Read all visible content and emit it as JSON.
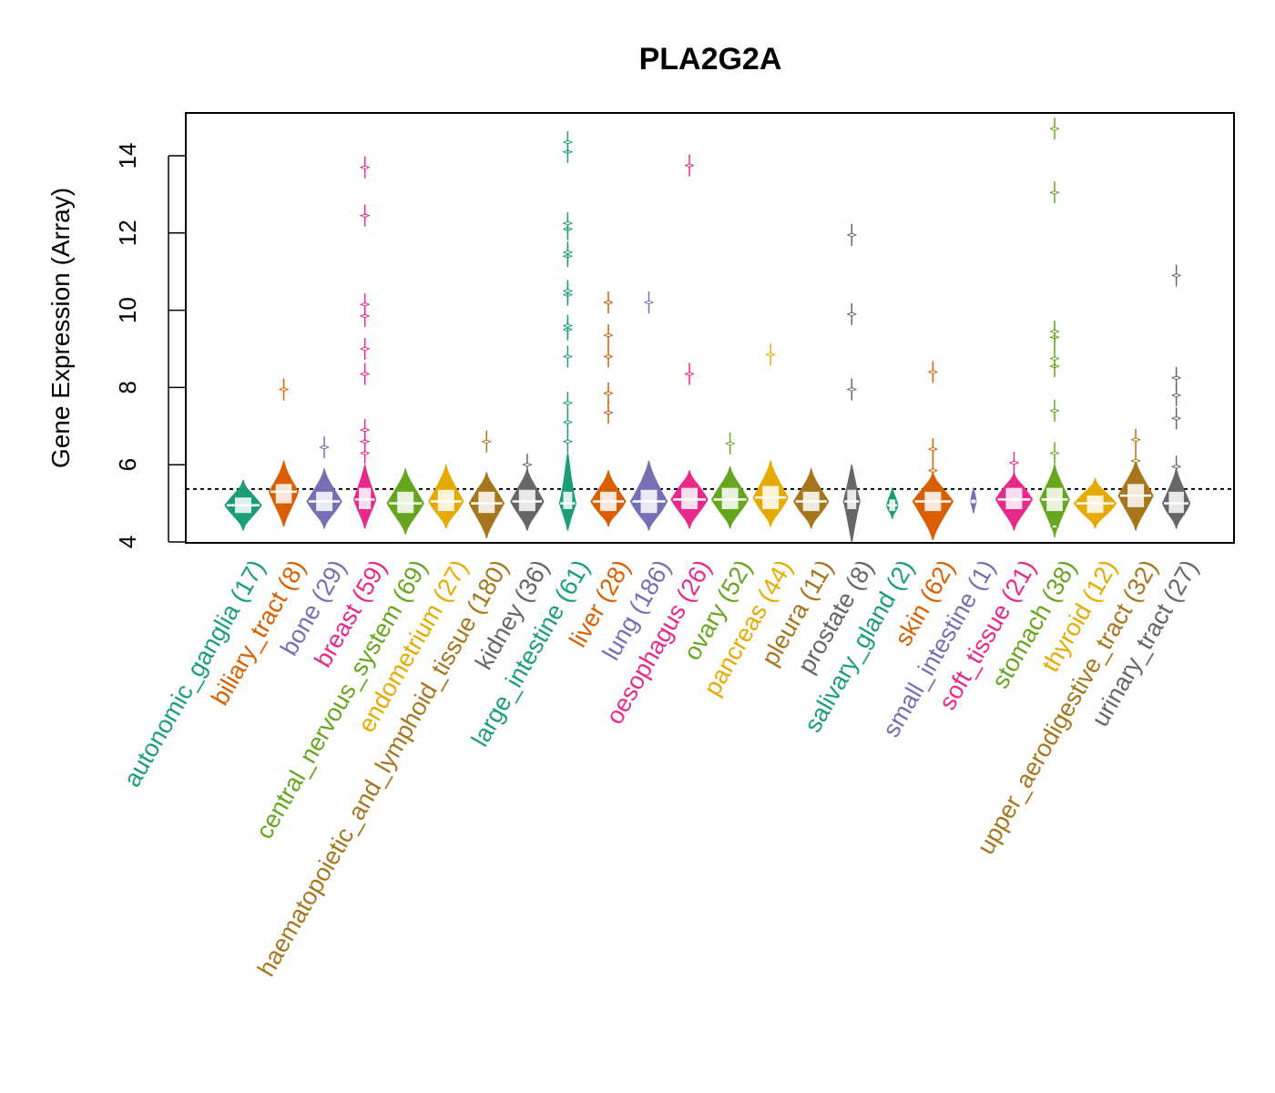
{
  "chart_data": {
    "type": "violin",
    "title": "PLA2G2A",
    "xlabel": "",
    "ylabel": "Gene Expression (Array)",
    "ylim": [
      4,
      15.1
    ],
    "yticks": [
      4,
      6,
      8,
      10,
      12,
      14
    ],
    "reference_line": {
      "value": 5.37,
      "style": "dotted",
      "color": "#000000"
    },
    "grid": false,
    "legend": "none",
    "categories": [
      {
        "name": "autonomic_ganglia",
        "n": 17,
        "label": "autonomic_ganglia (17)",
        "color": "#1B9E77",
        "median": 4.95,
        "q1": 4.75,
        "q3": 5.15,
        "min": 4.3,
        "max": 5.6,
        "width": 1.0,
        "outliers": []
      },
      {
        "name": "biliary_tract",
        "n": 8,
        "label": "biliary_tract (8)",
        "color": "#D95F02",
        "median": 5.3,
        "q1": 5.0,
        "q3": 5.5,
        "min": 4.4,
        "max": 6.1,
        "width": 0.8,
        "outliers": [
          7.95
        ]
      },
      {
        "name": "bone",
        "n": 29,
        "label": "bone (29)",
        "color": "#7570B3",
        "median": 5.05,
        "q1": 4.8,
        "q3": 5.3,
        "min": 4.35,
        "max": 5.9,
        "width": 0.95,
        "outliers": [
          6.45
        ]
      },
      {
        "name": "breast",
        "n": 59,
        "label": "breast (59)",
        "color": "#E7298A",
        "median": 5.1,
        "q1": 4.85,
        "q3": 5.4,
        "min": 4.35,
        "max": 6.0,
        "width": 0.6,
        "outliers": [
          6.3,
          6.6,
          6.9,
          8.35,
          9.0,
          9.85,
          10.15,
          12.45,
          13.7
        ]
      },
      {
        "name": "central_nervous_system",
        "n": 69,
        "label": "central_nervous_system (69)",
        "color": "#66A61E",
        "median": 5.0,
        "q1": 4.75,
        "q3": 5.3,
        "min": 4.2,
        "max": 5.9,
        "width": 1.0,
        "outliers": []
      },
      {
        "name": "endometrium",
        "n": 27,
        "label": "endometrium (27)",
        "color": "#E6AB02",
        "median": 5.05,
        "q1": 4.8,
        "q3": 5.35,
        "min": 4.35,
        "max": 6.0,
        "width": 0.95,
        "outliers": []
      },
      {
        "name": "haematopoietic_and_lymphoid_tissue",
        "n": 180,
        "label": "haematopoietic_and_lymphoid_tissue (180)",
        "color": "#A6761D",
        "median": 5.0,
        "q1": 4.75,
        "q3": 5.3,
        "min": 4.1,
        "max": 5.8,
        "width": 0.95,
        "outliers": [
          6.6
        ]
      },
      {
        "name": "kidney",
        "n": 36,
        "label": "kidney (36)",
        "color": "#666666",
        "median": 5.05,
        "q1": 4.8,
        "q3": 5.35,
        "min": 4.3,
        "max": 5.9,
        "width": 0.9,
        "outliers": [
          6.0
        ]
      },
      {
        "name": "large_intestine",
        "n": 61,
        "label": "large_intestine (61)",
        "color": "#1B9E77",
        "median": 5.0,
        "q1": 4.85,
        "q3": 5.3,
        "min": 4.3,
        "max": 6.3,
        "width": 0.45,
        "outliers": [
          6.6,
          7.1,
          7.6,
          8.8,
          9.5,
          9.6,
          10.4,
          10.5,
          11.4,
          11.5,
          12.1,
          12.25,
          14.1,
          14.35
        ]
      },
      {
        "name": "liver",
        "n": 28,
        "label": "liver (28)",
        "color": "#D95F02",
        "median": 5.05,
        "q1": 4.8,
        "q3": 5.3,
        "min": 4.4,
        "max": 5.85,
        "width": 0.95,
        "outliers": [
          7.35,
          7.85,
          8.8,
          9.35,
          10.2
        ]
      },
      {
        "name": "lung",
        "n": 186,
        "label": "lung (186)",
        "color": "#7570B3",
        "median": 5.05,
        "q1": 4.75,
        "q3": 5.35,
        "min": 4.3,
        "max": 6.1,
        "width": 1.0,
        "outliers": [
          10.2
        ]
      },
      {
        "name": "oesophagus",
        "n": 26,
        "label": "oesophagus (26)",
        "color": "#E7298A",
        "median": 5.1,
        "q1": 4.85,
        "q3": 5.4,
        "min": 4.35,
        "max": 5.85,
        "width": 1.0,
        "outliers": [
          8.35,
          13.75
        ]
      },
      {
        "name": "ovary",
        "n": 52,
        "label": "ovary (52)",
        "color": "#66A61E",
        "median": 5.1,
        "q1": 4.85,
        "q3": 5.4,
        "min": 4.35,
        "max": 5.95,
        "width": 1.0,
        "outliers": [
          6.55
        ]
      },
      {
        "name": "pancreas",
        "n": 44,
        "label": "pancreas (44)",
        "color": "#E6AB02",
        "median": 5.15,
        "q1": 4.85,
        "q3": 5.45,
        "min": 4.4,
        "max": 6.1,
        "width": 0.95,
        "outliers": [
          8.85
        ]
      },
      {
        "name": "pleura",
        "n": 11,
        "label": "pleura (11)",
        "color": "#A6761D",
        "median": 5.05,
        "q1": 4.8,
        "q3": 5.3,
        "min": 4.35,
        "max": 5.9,
        "width": 0.95,
        "outliers": []
      },
      {
        "name": "prostate",
        "n": 8,
        "label": "prostate (8)",
        "color": "#666666",
        "median": 5.05,
        "q1": 4.85,
        "q3": 5.35,
        "min": 4.0,
        "max": 6.0,
        "width": 0.45,
        "outliers": [
          7.95,
          9.9,
          11.95
        ]
      },
      {
        "name": "salivary_gland",
        "n": 2,
        "label": "salivary_gland (2)",
        "color": "#1B9E77",
        "median": 4.95,
        "q1": 4.8,
        "q3": 5.1,
        "min": 4.6,
        "max": 5.4,
        "width": 0.3,
        "outliers": []
      },
      {
        "name": "skin",
        "n": 62,
        "label": "skin (62)",
        "color": "#D95F02",
        "median": 5.05,
        "q1": 4.8,
        "q3": 5.3,
        "min": 4.05,
        "max": 5.8,
        "width": 1.1,
        "outliers": [
          5.85,
          6.4,
          8.4
        ]
      },
      {
        "name": "small_intestine",
        "n": 1,
        "label": "small_intestine (1)",
        "color": "#7570B3",
        "median": 5.05,
        "q1": 5.0,
        "q3": 5.1,
        "min": 4.75,
        "max": 5.4,
        "width": 0.15,
        "outliers": []
      },
      {
        "name": "soft_tissue",
        "n": 21,
        "label": "soft_tissue (21)",
        "color": "#E7298A",
        "median": 5.1,
        "q1": 4.85,
        "q3": 5.4,
        "min": 4.3,
        "max": 5.8,
        "width": 1.0,
        "outliers": [
          6.05
        ]
      },
      {
        "name": "stomach",
        "n": 38,
        "label": "stomach (38)",
        "color": "#66A61E",
        "median": 5.1,
        "q1": 4.8,
        "q3": 5.4,
        "min": 4.15,
        "max": 6.0,
        "width": 0.8,
        "outliers": [
          4.4,
          6.3,
          7.4,
          8.55,
          8.75,
          9.3,
          9.45,
          13.05,
          14.7
        ]
      },
      {
        "name": "thyroid",
        "n": 12,
        "label": "thyroid (12)",
        "color": "#E6AB02",
        "median": 5.0,
        "q1": 4.75,
        "q3": 5.2,
        "min": 4.35,
        "max": 5.65,
        "width": 1.15,
        "outliers": []
      },
      {
        "name": "upper_aerodigestive_tract",
        "n": 32,
        "label": "upper_aerodigestive_tract (32)",
        "color": "#A6761D",
        "median": 5.2,
        "q1": 4.9,
        "q3": 5.5,
        "min": 4.3,
        "max": 6.1,
        "width": 0.95,
        "outliers": [
          6.1,
          6.65
        ]
      },
      {
        "name": "urinary_tract",
        "n": 27,
        "label": "urinary_tract (27)",
        "color": "#666666",
        "median": 5.0,
        "q1": 4.75,
        "q3": 5.3,
        "min": 4.35,
        "max": 5.9,
        "width": 0.75,
        "outliers": [
          5.95,
          7.2,
          7.8,
          8.25,
          10.9
        ]
      }
    ]
  }
}
